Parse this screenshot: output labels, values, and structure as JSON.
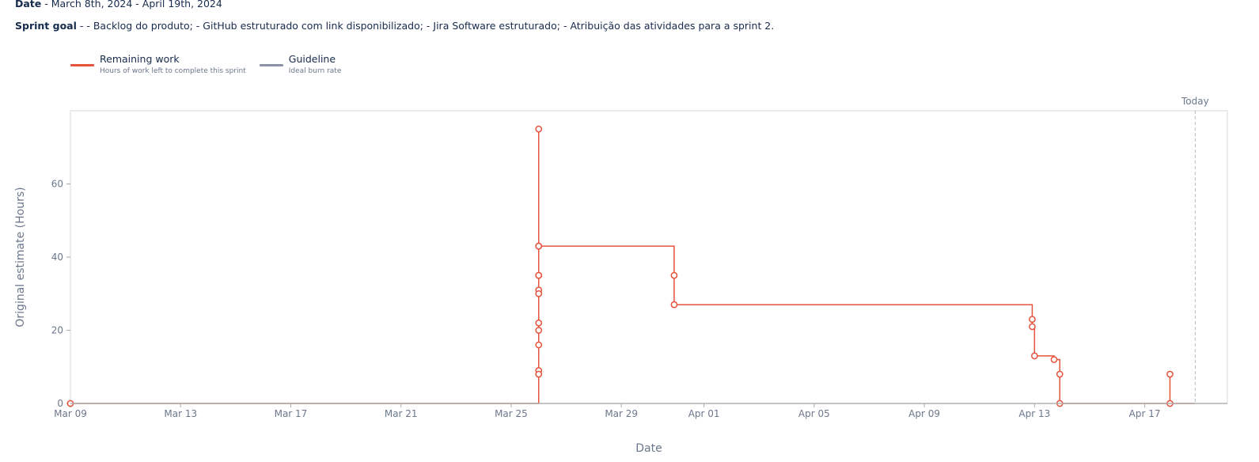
{
  "header": {
    "date_label": "Date",
    "date_value": " - March 8th, 2024 - April 19th, 2024",
    "goal_label": "Sprint goal",
    "goal_value": " - - Backlog do produto; - GitHub estruturado com link disponibilizado; - Jira Software estruturado; - Atribuição das atividades para a sprint 2."
  },
  "legend": [
    {
      "name": "Remaining work",
      "desc": "Hours of work left to complete this sprint",
      "color": "#e5533d"
    },
    {
      "name": "Guideline",
      "desc": "Ideal burn rate",
      "color": "#8993a4"
    }
  ],
  "chart_data": {
    "type": "line",
    "title": "",
    "xlabel": "Date",
    "ylabel": "Original estimate (Hours)",
    "x_ticks": [
      "2024-03-09",
      "2024-03-13",
      "2024-03-17",
      "2024-03-21",
      "2024-03-25",
      "2024-03-29",
      "2024-04-01",
      "2024-04-05",
      "2024-04-09",
      "2024-04-13",
      "2024-04-17"
    ],
    "x_tick_labels": [
      "Mar 09",
      "Mar 13",
      "Mar 17",
      "Mar 21",
      "Mar 25",
      "Mar 29",
      "Apr 01",
      "Apr 05",
      "Apr 09",
      "Apr 13",
      "Apr 17"
    ],
    "y_ticks": [
      0,
      20,
      40,
      60
    ],
    "ylim": [
      0,
      80
    ],
    "xlim": [
      "2024-03-09",
      "2024-04-20"
    ],
    "today_label": "Today",
    "today": "2024-04-18T20:00",
    "colors": {
      "remaining": "#e5533d",
      "axis": "#cccccc",
      "today": "#b3bac5"
    },
    "series": [
      {
        "name": "Remaining work",
        "step": true,
        "points": [
          {
            "x": "2024-03-09T00:00",
            "y": 0
          },
          {
            "x": "2024-03-26T00:00",
            "y": 75
          },
          {
            "x": "2024-03-26T00:00",
            "y": 43
          },
          {
            "x": "2024-03-26T00:00",
            "y": 35
          },
          {
            "x": "2024-03-26T00:00",
            "y": 35
          },
          {
            "x": "2024-03-26T00:00",
            "y": 31
          },
          {
            "x": "2024-03-26T00:00",
            "y": 30
          },
          {
            "x": "2024-03-26T00:00",
            "y": 22
          },
          {
            "x": "2024-03-26T00:00",
            "y": 20
          },
          {
            "x": "2024-03-26T00:00",
            "y": 16
          },
          {
            "x": "2024-03-26T00:00",
            "y": 9
          },
          {
            "x": "2024-03-26T00:00",
            "y": 8
          },
          {
            "x": "2024-03-26T00:00",
            "y": 43
          },
          {
            "x": "2024-03-30T22:00",
            "y": 35
          },
          {
            "x": "2024-03-30T22:00",
            "y": 27
          },
          {
            "x": "2024-04-12T22:00",
            "y": 23
          },
          {
            "x": "2024-04-12T22:00",
            "y": 21
          },
          {
            "x": "2024-04-13T00:00",
            "y": 13
          },
          {
            "x": "2024-04-13T17:00",
            "y": 12
          },
          {
            "x": "2024-04-13T22:00",
            "y": 8
          },
          {
            "x": "2024-04-13T22:00",
            "y": 0
          },
          {
            "x": "2024-04-17T22:00",
            "y": 8
          },
          {
            "x": "2024-04-17T22:00",
            "y": 0
          }
        ]
      }
    ]
  }
}
